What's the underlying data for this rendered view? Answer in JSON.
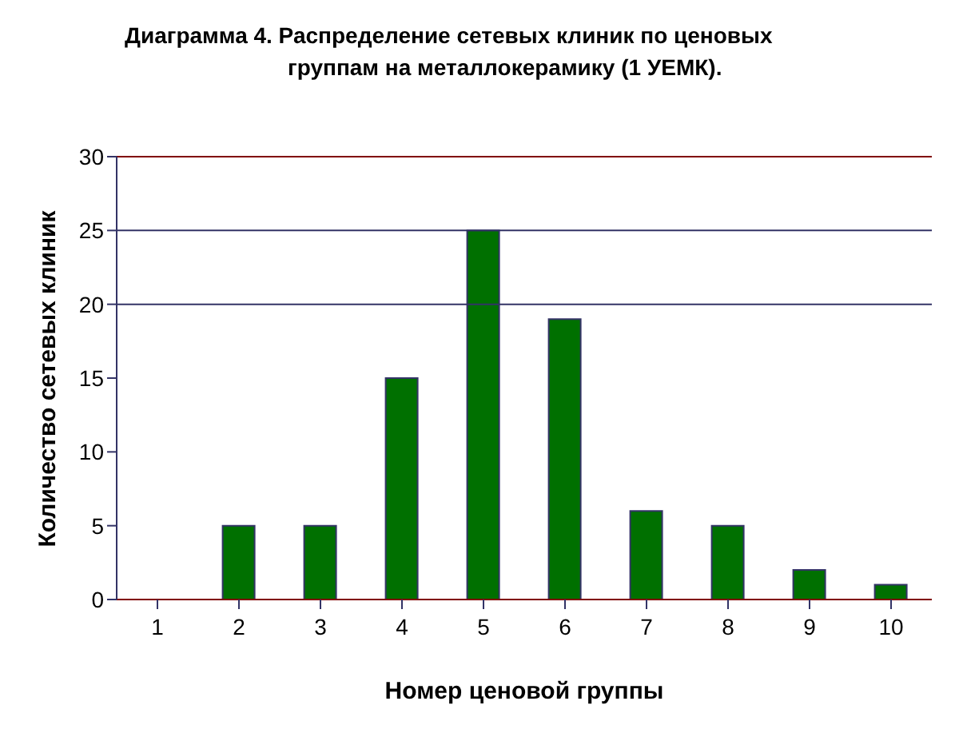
{
  "chart_data": {
    "type": "bar",
    "title": "Диаграмма 4. Распределение сетевых клиник по ценовых\nгруппам на металлокерамику (1 УЕМК).",
    "xlabel": "Номер ценовой группы",
    "ylabel": "Количество сетевых клиник",
    "categories": [
      "1",
      "2",
      "3",
      "4",
      "5",
      "6",
      "7",
      "8",
      "9",
      "10"
    ],
    "values": [
      0,
      5,
      5,
      15,
      25,
      19,
      6,
      5,
      2,
      1
    ],
    "color": "#007000",
    "ylim": [
      0,
      30
    ],
    "yticks": [
      0,
      5,
      10,
      15,
      20,
      25,
      30
    ],
    "ref_lines": [
      {
        "axis": "y",
        "value": 20,
        "color": "#333366"
      },
      {
        "axis": "y",
        "value": 25,
        "color": "#333366"
      }
    ],
    "grid": false,
    "legend": false
  }
}
